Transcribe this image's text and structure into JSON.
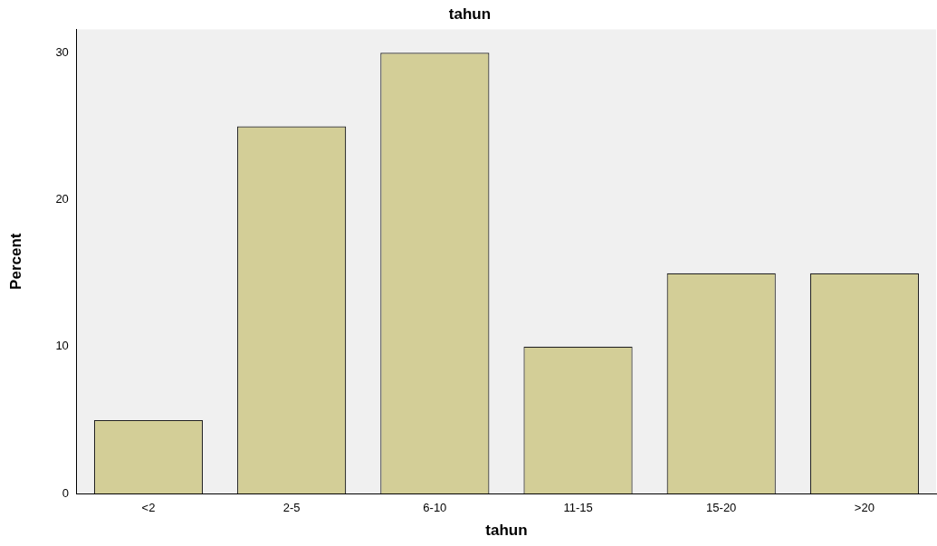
{
  "chart_data": {
    "type": "bar",
    "title": "tahun",
    "xlabel": "tahun",
    "ylabel": "Percent",
    "categories": [
      "<2",
      "2-5",
      "6-10",
      "11-15",
      "15-20",
      ">20"
    ],
    "values": [
      5,
      25,
      30,
      10,
      15,
      15
    ],
    "color": "#d3ce97",
    "ylim": [
      0,
      31.6
    ],
    "yticks": [
      0,
      10,
      20,
      30
    ],
    "grid": false,
    "legend": false
  }
}
